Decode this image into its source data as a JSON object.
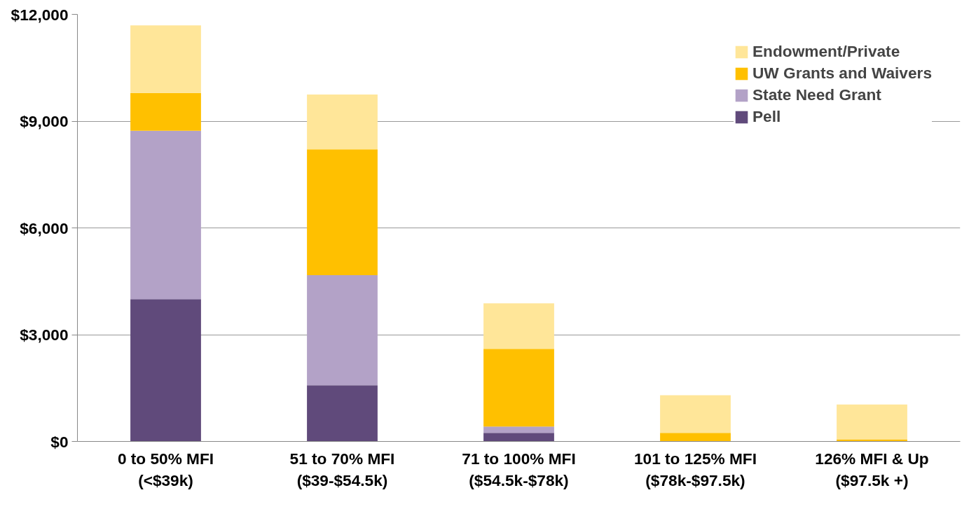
{
  "chart_data": {
    "type": "bar",
    "stacked": true,
    "categories": [
      "0 to 50% MFI\n(<$39k)",
      "51 to 70% MFI\n($39-$54.5k)",
      "71 to 100% MFI\n($54.5k-$78k)",
      "101 to 125% MFI\n($78k-$97.5k)",
      "126% MFI & Up\n($97.5k +)"
    ],
    "series": [
      {
        "name": "Pell",
        "color": "#604a7b",
        "values": [
          4000,
          1580,
          240,
          0,
          0
        ]
      },
      {
        "name": "State Need Grant",
        "color": "#b3a2c7",
        "values": [
          4730,
          3090,
          180,
          0,
          0
        ]
      },
      {
        "name": "UW Grants and Waivers",
        "color": "#ffc000",
        "values": [
          1060,
          3540,
          2180,
          240,
          60
        ]
      },
      {
        "name": "Endowment/Private",
        "color": "#ffe699",
        "values": [
          1900,
          1540,
          1280,
          1060,
          980
        ]
      }
    ],
    "ylim": [
      0,
      12000
    ],
    "yticks": [
      {
        "value": 0,
        "label": "$0"
      },
      {
        "value": 3000,
        "label": "$3,000"
      },
      {
        "value": 6000,
        "label": "$6,000"
      },
      {
        "value": 9000,
        "label": "$9,000"
      },
      {
        "value": 12000,
        "label": "$12,000"
      }
    ],
    "grid": "y",
    "legend": "top right"
  }
}
